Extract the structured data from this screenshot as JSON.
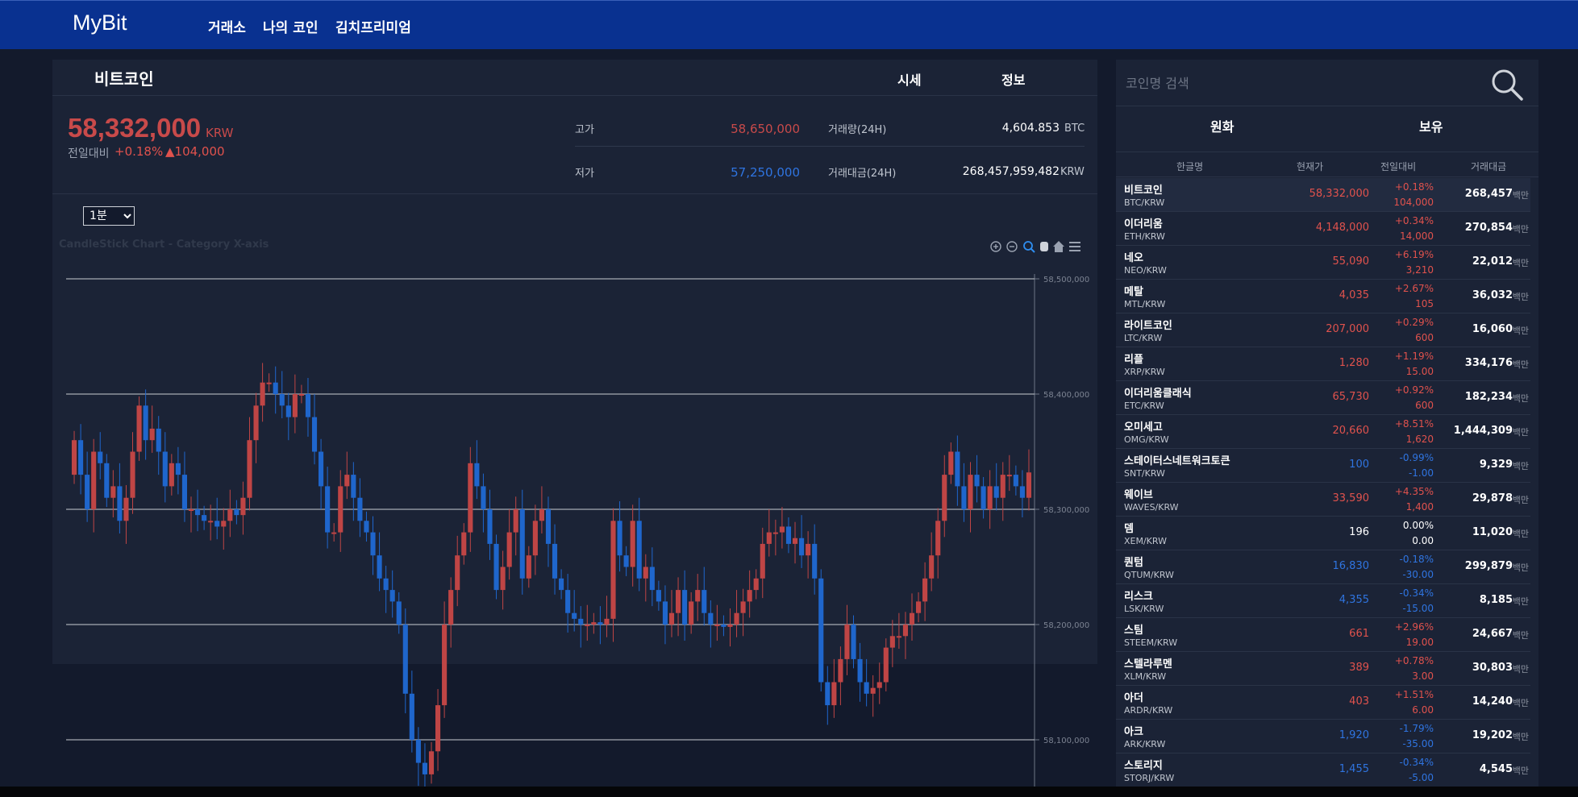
{
  "app": {
    "logo": "MyBit"
  },
  "nav": [
    "거래소",
    "나의 코인",
    "김치프리미엄"
  ],
  "coin": {
    "name": "비트코인",
    "tabs": [
      "시세",
      "정보"
    ],
    "price": "58,332,000",
    "unit": "KRW",
    "change_label": "전일대비",
    "change_rate": "+0.18%",
    "change_amount": "▲104,000",
    "high_label": "고가",
    "high_value": "58,650,000",
    "low_label": "저가",
    "low_value": "57,250,000",
    "volume_label": "거래량(24H)",
    "volume_value": "4,604.853",
    "volume_unit": "BTC",
    "turnover_label": "거래대금(24H)",
    "turnover_value": "268,457,959,482",
    "turnover_unit": "KRW"
  },
  "chart_controls": {
    "interval": "1분",
    "title": "CandleStick Chart - Category X-axis",
    "icons": [
      "zoom-in-icon",
      "zoom-out-icon",
      "zoom-select-icon",
      "pan-icon",
      "home-icon",
      "menu-icon"
    ]
  },
  "chart_data": {
    "type": "candlestick",
    "title": "CandleStick Chart - Category X-axis",
    "y_tick_labels": [
      "58,500,000",
      "58,400,000",
      "58,300,000",
      "58,200,000",
      "58,100,000"
    ],
    "ylim": [
      58050000,
      58500000
    ],
    "grid": true,
    "up_color": "#bf4545",
    "down_color": "#1f66cc",
    "closes": [
      58360000,
      58330000,
      58300000,
      58350000,
      58340000,
      58310000,
      58320000,
      58290000,
      58310000,
      58350000,
      58390000,
      58360000,
      58370000,
      58350000,
      58320000,
      58340000,
      58330000,
      58300000,
      58300000,
      58295000,
      58290000,
      58290000,
      58285000,
      58290000,
      58300000,
      58295000,
      58310000,
      58360000,
      58390000,
      58410000,
      58410000,
      58400000,
      58390000,
      58380000,
      58400000,
      58400000,
      58380000,
      58350000,
      58320000,
      58280000,
      58280000,
      58320000,
      58330000,
      58310000,
      58290000,
      58280000,
      58260000,
      58240000,
      58230000,
      58220000,
      58200000,
      58140000,
      58100000,
      58080000,
      58070000,
      58090000,
      58130000,
      58200000,
      58230000,
      58260000,
      58280000,
      58340000,
      58320000,
      58300000,
      58270000,
      58230000,
      58250000,
      58280000,
      58300000,
      58240000,
      58260000,
      58290000,
      58300000,
      58270000,
      58240000,
      58230000,
      58210000,
      58205000,
      58200000,
      58200000,
      58202000,
      58200000,
      58205000,
      58290000,
      58260000,
      58250000,
      58290000,
      58240000,
      58250000,
      58230000,
      58220000,
      58200000,
      58210000,
      58230000,
      58200000,
      58220000,
      58230000,
      58210000,
      58200000,
      58200000,
      58198000,
      58200000,
      58210000,
      58220000,
      58230000,
      58240000,
      58270000,
      58280000,
      58280000,
      58285000,
      58270000,
      58275000,
      58260000,
      58270000,
      58240000,
      58150000,
      58130000,
      58150000,
      58170000,
      58200000,
      58170000,
      58150000,
      58140000,
      58145000,
      58150000,
      58180000,
      58190000,
      58190000,
      58200000,
      58210000,
      58220000,
      58240000,
      58260000,
      58290000,
      58330000,
      58350000,
      58320000,
      58300000,
      58330000,
      58320000,
      58300000,
      58320000,
      58310000,
      58330000,
      58330000,
      58320000,
      58310000,
      58332000
    ]
  },
  "market": {
    "search_placeholder": "코인명 검색",
    "tabs": [
      "원화",
      "보유"
    ],
    "headers": [
      "한글명",
      "현재가",
      "전일대비",
      "거래대금"
    ],
    "volume_unit": "백만",
    "rows": [
      {
        "name": "비트코인",
        "symbol": "BTC/KRW",
        "price": "58,332,000",
        "rate": "+0.18%",
        "amount": "104,000",
        "volume": "268,457",
        "dir": "up"
      },
      {
        "name": "이더리움",
        "symbol": "ETH/KRW",
        "price": "4,148,000",
        "rate": "+0.34%",
        "amount": "14,000",
        "volume": "270,854",
        "dir": "up"
      },
      {
        "name": "네오",
        "symbol": "NEO/KRW",
        "price": "55,090",
        "rate": "+6.19%",
        "amount": "3,210",
        "volume": "22,012",
        "dir": "up"
      },
      {
        "name": "메탈",
        "symbol": "MTL/KRW",
        "price": "4,035",
        "rate": "+2.67%",
        "amount": "105",
        "volume": "36,032",
        "dir": "up"
      },
      {
        "name": "라이트코인",
        "symbol": "LTC/KRW",
        "price": "207,000",
        "rate": "+0.29%",
        "amount": "600",
        "volume": "16,060",
        "dir": "up"
      },
      {
        "name": "리플",
        "symbol": "XRP/KRW",
        "price": "1,280",
        "rate": "+1.19%",
        "amount": "15.00",
        "volume": "334,176",
        "dir": "up"
      },
      {
        "name": "이더리움클래식",
        "symbol": "ETC/KRW",
        "price": "65,730",
        "rate": "+0.92%",
        "amount": "600",
        "volume": "182,234",
        "dir": "up"
      },
      {
        "name": "오미세고",
        "symbol": "OMG/KRW",
        "price": "20,660",
        "rate": "+8.51%",
        "amount": "1,620",
        "volume": "1,444,309",
        "dir": "up"
      },
      {
        "name": "스테이터스네트워크토큰",
        "symbol": "SNT/KRW",
        "price": "100",
        "rate": "-0.99%",
        "amount": "-1.00",
        "volume": "9,329",
        "dir": "down"
      },
      {
        "name": "웨이브",
        "symbol": "WAVES/KRW",
        "price": "33,590",
        "rate": "+4.35%",
        "amount": "1,400",
        "volume": "29,878",
        "dir": "up"
      },
      {
        "name": "뎀",
        "symbol": "XEM/KRW",
        "price": "196",
        "rate": "0.00%",
        "amount": "0.00",
        "volume": "11,020",
        "dir": "flat"
      },
      {
        "name": "퀀텀",
        "symbol": "QTUM/KRW",
        "price": "16,830",
        "rate": "-0.18%",
        "amount": "-30.00",
        "volume": "299,879",
        "dir": "down"
      },
      {
        "name": "리스크",
        "symbol": "LSK/KRW",
        "price": "4,355",
        "rate": "-0.34%",
        "amount": "-15.00",
        "volume": "8,185",
        "dir": "down"
      },
      {
        "name": "스팀",
        "symbol": "STEEM/KRW",
        "price": "661",
        "rate": "+2.96%",
        "amount": "19.00",
        "volume": "24,667",
        "dir": "up"
      },
      {
        "name": "스텔라루멘",
        "symbol": "XLM/KRW",
        "price": "389",
        "rate": "+0.78%",
        "amount": "3.00",
        "volume": "30,803",
        "dir": "up"
      },
      {
        "name": "아더",
        "symbol": "ARDR/KRW",
        "price": "403",
        "rate": "+1.51%",
        "amount": "6.00",
        "volume": "14,240",
        "dir": "up"
      },
      {
        "name": "아크",
        "symbol": "ARK/KRW",
        "price": "1,920",
        "rate": "-1.79%",
        "amount": "-35.00",
        "volume": "19,202",
        "dir": "down"
      },
      {
        "name": "스토리지",
        "symbol": "STORJ/KRW",
        "price": "1,455",
        "rate": "-0.34%",
        "amount": "-5.00",
        "volume": "4,545",
        "dir": "down"
      }
    ]
  }
}
